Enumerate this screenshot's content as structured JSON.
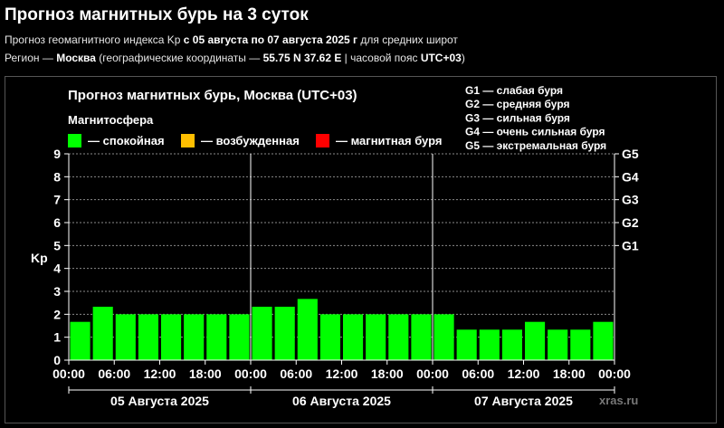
{
  "page": {
    "title": "Прогноз магнитных бурь на 3 суток",
    "line1": {
      "prefix": "Прогноз геомагнитного индекса Kp ",
      "range": "с 05 августа по 07 августа 2025 г",
      "suffix": " для средних широт"
    },
    "line2": {
      "prefix": "Регион — ",
      "region": "Москва",
      "middle": " (географические координаты — ",
      "coords": "55.75 N 37.62 E",
      "middle2": " | часовой пояс ",
      "tz": "UTC+03",
      "suffix": ")"
    }
  },
  "chart_data": {
    "type": "bar",
    "title": "Прогноз магнитных бурь, Москва (UTC+03)",
    "legend_title": "Магнитосфера",
    "legend": [
      {
        "label": "— спокойная",
        "color": "#00ff00"
      },
      {
        "label": "— возбужденная",
        "color": "#ffbf00"
      },
      {
        "label": "— магнитная буря",
        "color": "#ff0000"
      }
    ],
    "storm_levels": [
      "G1 — слабая буря",
      "G2 — средняя буря",
      "G3 — сильная буря",
      "G4 — очень сильная буря",
      "G5 — экстремальная буря"
    ],
    "ylabel": "Kp",
    "ylim": [
      0,
      9
    ],
    "yticks": [
      0,
      1,
      2,
      3,
      4,
      5,
      6,
      7,
      8,
      9
    ],
    "right_ticks": [
      {
        "value": 5,
        "label": "G1"
      },
      {
        "value": 6,
        "label": "G2"
      },
      {
        "value": 7,
        "label": "G3"
      },
      {
        "value": 8,
        "label": "G4"
      },
      {
        "value": 9,
        "label": "G5"
      }
    ],
    "xticks": [
      "00:00",
      "06:00",
      "12:00",
      "18:00",
      "00:00",
      "06:00",
      "12:00",
      "18:00",
      "00:00",
      "06:00",
      "12:00",
      "18:00",
      "00:00"
    ],
    "days": [
      "05 Августа 2025",
      "06 Августа 2025",
      "07 Августа 2025"
    ],
    "values": [
      1.67,
      2.33,
      2.0,
      2.0,
      2.0,
      2.0,
      2.0,
      2.0,
      2.33,
      2.33,
      2.67,
      2.0,
      2.0,
      2.0,
      2.0,
      2.0,
      2.0,
      1.33,
      1.33,
      1.33,
      1.67,
      1.33,
      1.33,
      1.67
    ],
    "bar_color": "#00ff00",
    "grid": true,
    "watermark": "xras.ru"
  }
}
